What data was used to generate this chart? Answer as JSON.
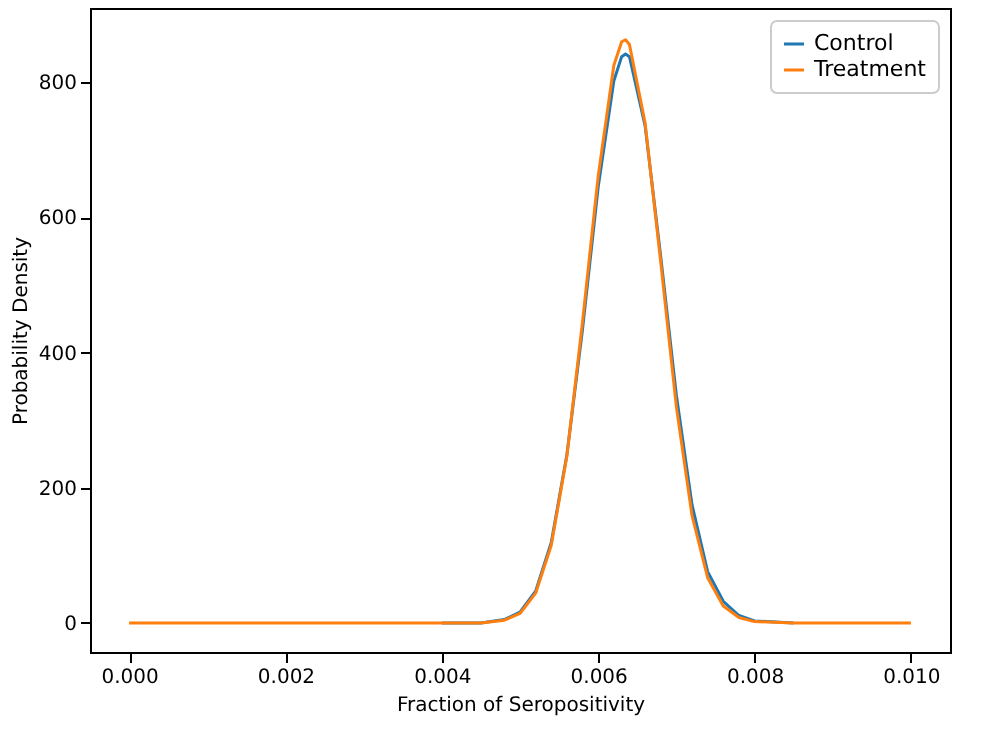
{
  "chart_data": {
    "type": "line",
    "xlabel": "Fraction of Seropositivity",
    "ylabel": "Probability Density",
    "x": [
      0,
      0.001,
      0.002,
      0.003,
      0.004,
      0.0045,
      0.0048,
      0.005,
      0.0052,
      0.0054,
      0.0056,
      0.0058,
      0.006,
      0.0062,
      0.0063,
      0.00635,
      0.0064,
      0.0066,
      0.0068,
      0.007,
      0.0072,
      0.0074,
      0.0076,
      0.0078,
      0.008,
      0.0085,
      0.009,
      0.0095,
      0.01
    ],
    "series": [
      {
        "name": "Control",
        "color": "#1f77b4",
        "values": [
          null,
          null,
          null,
          null,
          0,
          0,
          5,
          16,
          47,
          119,
          249,
          435,
          645,
          802,
          838,
          842,
          838,
          736,
          542,
          337,
          175,
          76,
          32,
          11,
          3,
          0,
          null,
          null,
          null
        ]
      },
      {
        "name": "Treatment",
        "color": "#ff7f0e",
        "values": [
          0,
          0,
          0,
          0,
          0,
          0,
          4,
          14,
          44,
          115,
          247,
          446,
          661,
          825,
          860,
          863,
          856,
          740,
          534,
          320,
          159,
          67,
          25,
          8,
          2,
          0,
          0,
          0,
          0
        ]
      }
    ],
    "xlim": [
      -0.0005,
      0.0105
    ],
    "xticks": [
      {
        "value": 0,
        "label": "0.000"
      },
      {
        "value": 0.002,
        "label": "0.002"
      },
      {
        "value": 0.004,
        "label": "0.004"
      },
      {
        "value": 0.006,
        "label": "0.006"
      },
      {
        "value": 0.008,
        "label": "0.008"
      },
      {
        "value": 0.01,
        "label": "0.010"
      }
    ],
    "ylim": [
      -43,
      910
    ],
    "yticks": [
      0,
      200,
      400,
      600,
      800
    ],
    "legend": "top right",
    "grid": false,
    "marker": "none",
    "line_style": "solid"
  }
}
